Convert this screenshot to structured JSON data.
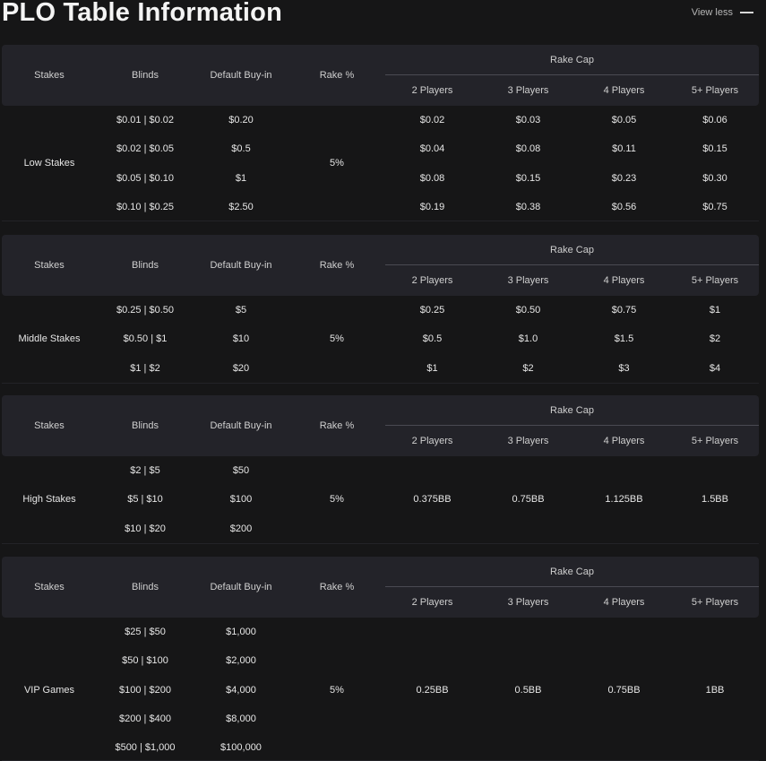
{
  "page": {
    "title": "PLO Table Information",
    "view_less": "View less"
  },
  "headers": {
    "stakes": "Stakes",
    "blinds": "Blinds",
    "buyin": "Default Buy-in",
    "rake_pct": "Rake %",
    "rake_cap": "Rake Cap",
    "players": [
      "2 Players",
      "3 Players",
      "4 Players",
      "5+ Players"
    ]
  },
  "sections": [
    {
      "name": "Low Stakes",
      "rake": "5%",
      "rows": [
        {
          "blinds": "$0.01 | $0.02",
          "buyin": "$0.20",
          "caps": [
            "$0.02",
            "$0.03",
            "$0.05",
            "$0.06"
          ]
        },
        {
          "blinds": "$0.02 | $0.05",
          "buyin": "$0.5",
          "caps": [
            "$0.04",
            "$0.08",
            "$0.11",
            "$0.15"
          ]
        },
        {
          "blinds": "$0.05 | $0.10",
          "buyin": "$1",
          "caps": [
            "$0.08",
            "$0.15",
            "$0.23",
            "$0.30"
          ]
        },
        {
          "blinds": "$0.10 | $0.25",
          "buyin": "$2.50",
          "caps": [
            "$0.19",
            "$0.38",
            "$0.56",
            "$0.75"
          ]
        }
      ]
    },
    {
      "name": "Middle Stakes",
      "rake": "5%",
      "rows": [
        {
          "blinds": "$0.25 | $0.50",
          "buyin": "$5",
          "caps": [
            "$0.25",
            "$0.50",
            "$0.75",
            "$1"
          ]
        },
        {
          "blinds": "$0.50 | $1",
          "buyin": "$10",
          "caps": [
            "$0.5",
            "$1.0",
            "$1.5",
            "$2"
          ]
        },
        {
          "blinds": "$1 | $2",
          "buyin": "$20",
          "caps": [
            "$1",
            "$2",
            "$3",
            "$4"
          ]
        }
      ]
    },
    {
      "name": "High Stakes",
      "rake": "5%",
      "caps": [
        "0.375BB",
        "0.75BB",
        "1.125BB",
        "1.5BB"
      ],
      "rows": [
        {
          "blinds": "$2 | $5",
          "buyin": "$50"
        },
        {
          "blinds": "$5 | $10",
          "buyin": "$100"
        },
        {
          "blinds": "$10 | $20",
          "buyin": "$200"
        }
      ]
    },
    {
      "name": "VIP Games",
      "rake": "5%",
      "caps": [
        "0.25BB",
        "0.5BB",
        "0.75BB",
        "1BB"
      ],
      "rows": [
        {
          "blinds": "$25 | $50",
          "buyin": "$1,000"
        },
        {
          "blinds": "$50 | $100",
          "buyin": "$2,000"
        },
        {
          "blinds": "$100 | $200",
          "buyin": "$4,000"
        },
        {
          "blinds": "$200 | $400",
          "buyin": "$8,000"
        },
        {
          "blinds": "$500 | $1,000",
          "buyin": "$100,000"
        }
      ]
    }
  ]
}
